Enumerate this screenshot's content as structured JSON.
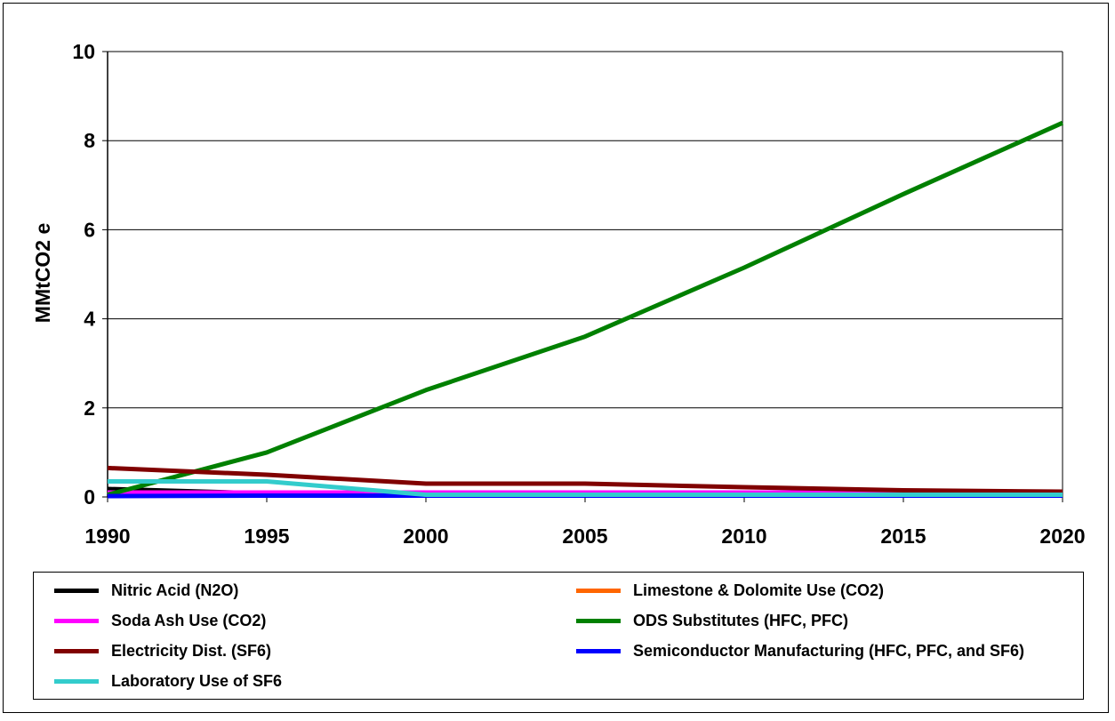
{
  "chart_data": {
    "type": "line",
    "title": "",
    "xlabel": "",
    "ylabel": "MMtCO2 e",
    "x": [
      1990,
      1995,
      2000,
      2005,
      2010,
      2015,
      2020
    ],
    "x_tick_labels": [
      "1990",
      "1995",
      "2000",
      "2005",
      "2010",
      "2015",
      "2020"
    ],
    "ylim": [
      0,
      10
    ],
    "y_tick_labels": [
      "0",
      "2",
      "4",
      "6",
      "8",
      "10"
    ],
    "grid": "horizontal",
    "legend_position": "bottom",
    "series": [
      {
        "name": "Nitric Acid (N2O)",
        "color": "#000000",
        "values": [
          0.18,
          0.08,
          0.05,
          0.05,
          0.05,
          0.05,
          0.05
        ]
      },
      {
        "name": "Limestone & Dolomite Use (CO2)",
        "color": "#FF6600",
        "values": [
          0.03,
          0.03,
          0.03,
          0.03,
          0.03,
          0.03,
          0.03
        ]
      },
      {
        "name": "Soda Ash Use (CO2)",
        "color": "#FF00FF",
        "values": [
          0.1,
          0.1,
          0.1,
          0.1,
          0.1,
          0.1,
          0.1
        ]
      },
      {
        "name": "ODS Substitutes (HFC, PFC)",
        "color": "#008000",
        "values": [
          0.05,
          1.0,
          2.4,
          3.6,
          5.15,
          6.8,
          8.4
        ]
      },
      {
        "name": "Electricity Dist. (SF6)",
        "color": "#800000",
        "values": [
          0.65,
          0.5,
          0.3,
          0.3,
          0.22,
          0.15,
          0.12
        ]
      },
      {
        "name": "Semiconductor Manufacturing (HFC, PFC, and SF6)",
        "color": "#0000FF",
        "values": [
          0.02,
          0.03,
          0.03,
          0.03,
          0.03,
          0.03,
          0.03
        ]
      },
      {
        "name": "Laboratory Use of SF6",
        "color": "#33CCCC",
        "values": [
          0.35,
          0.35,
          0.05,
          0.05,
          0.05,
          0.05,
          0.05
        ]
      }
    ]
  }
}
